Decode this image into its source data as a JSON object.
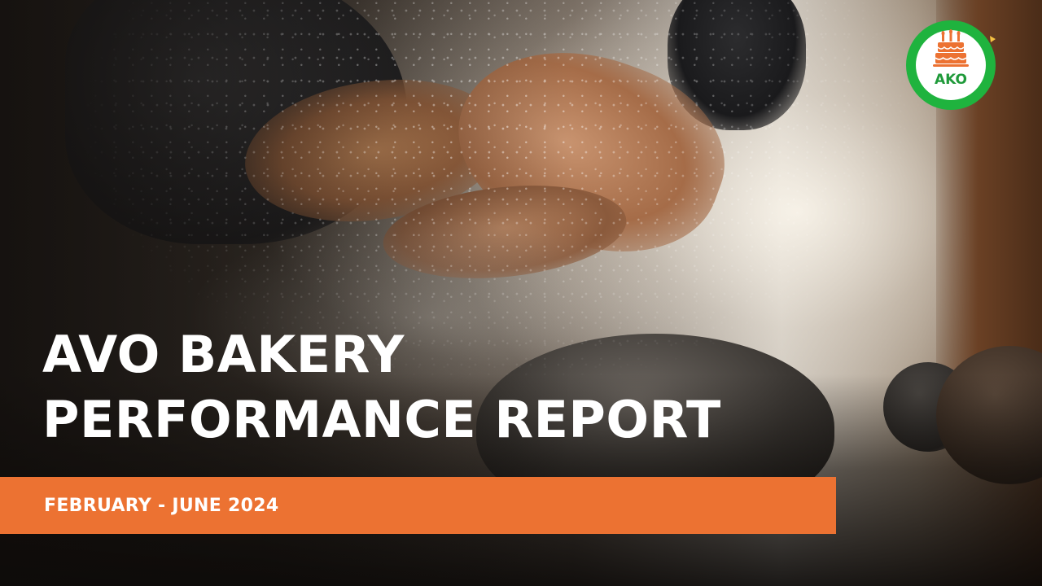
{
  "slide": {
    "title_line1": "AVO BAKERY",
    "title_line2": "PERFORMANCE REPORT",
    "date_range": "FEBRUARY - JUNE 2024",
    "accent_color": "#ec7232"
  },
  "logo": {
    "text": "AKO",
    "ring_color": "#1fb33e",
    "icon": "cake-icon"
  }
}
